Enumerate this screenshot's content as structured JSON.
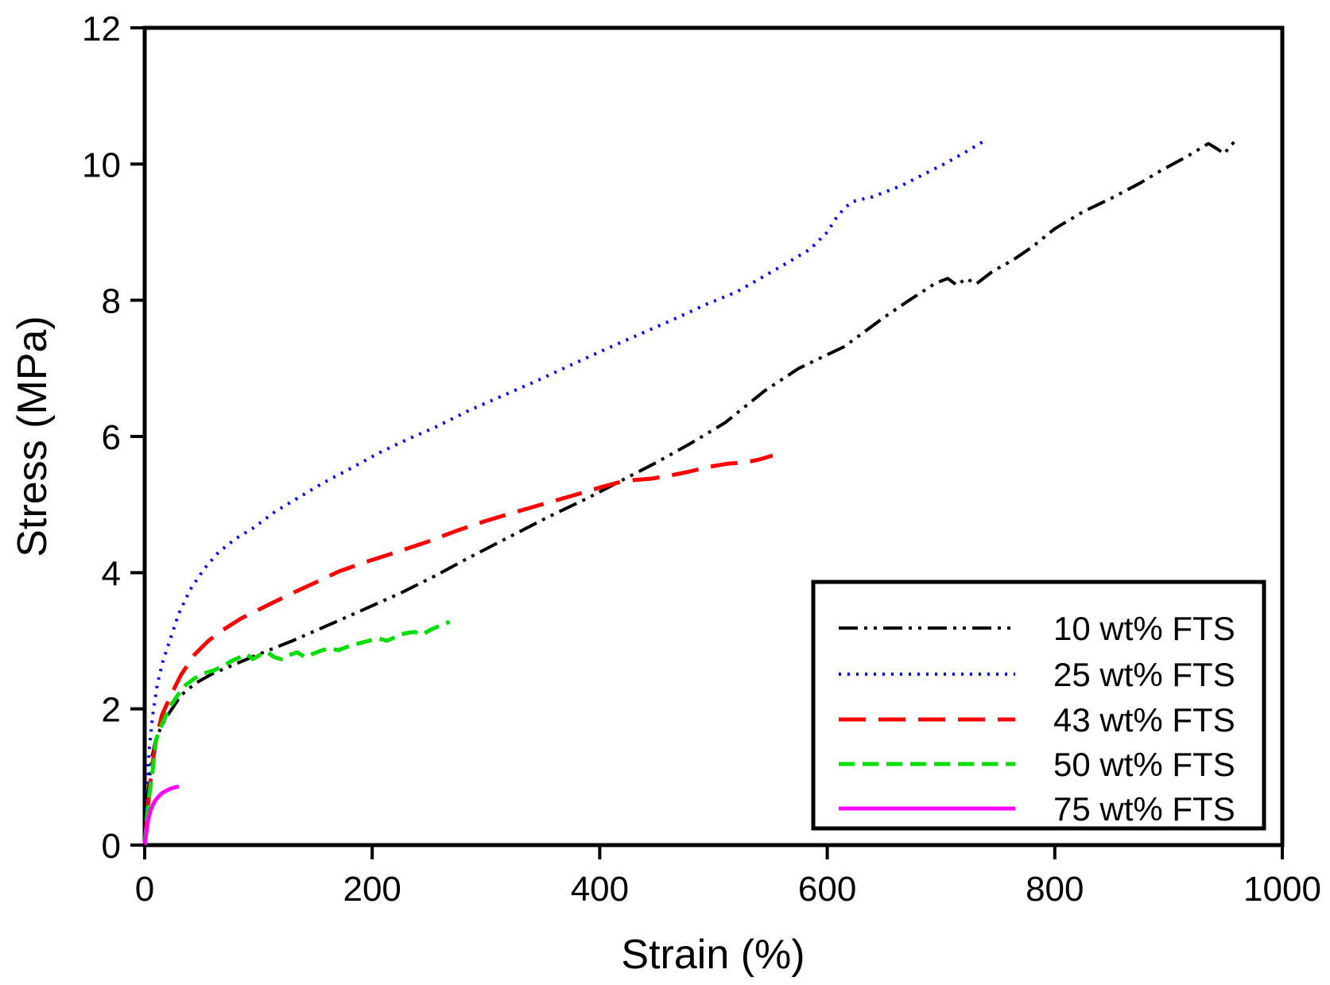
{
  "chart_data": {
    "type": "line",
    "title": "",
    "xlabel": "Strain (%)",
    "ylabel": "Stress (MPa)",
    "xlim": [
      0,
      1000
    ],
    "ylim": [
      0,
      12
    ],
    "xticks": [
      0,
      200,
      400,
      600,
      800,
      1000
    ],
    "yticks": [
      0,
      2,
      4,
      6,
      8,
      10,
      12
    ],
    "grid": false,
    "legend_position": "lower-right",
    "axis_color": "#000000",
    "background_color": "#ffffff",
    "series": [
      {
        "name": "10 wt% FTS",
        "color": "#000000",
        "line_style": "dash-dot-dot",
        "dash": [
          24,
          8,
          4,
          8,
          4,
          8
        ],
        "width": 4,
        "points": [
          [
            0,
            0
          ],
          [
            2,
            0.5
          ],
          [
            4,
            0.95
          ],
          [
            6,
            1.25
          ],
          [
            9,
            1.5
          ],
          [
            14,
            1.72
          ],
          [
            20,
            1.9
          ],
          [
            32,
            2.2
          ],
          [
            45,
            2.38
          ],
          [
            60,
            2.52
          ],
          [
            80,
            2.66
          ],
          [
            100,
            2.8
          ],
          [
            130,
            3.0
          ],
          [
            160,
            3.22
          ],
          [
            190,
            3.44
          ],
          [
            225,
            3.7
          ],
          [
            255,
            3.95
          ],
          [
            285,
            4.22
          ],
          [
            320,
            4.52
          ],
          [
            355,
            4.82
          ],
          [
            390,
            5.1
          ],
          [
            420,
            5.36
          ],
          [
            450,
            5.62
          ],
          [
            480,
            5.9
          ],
          [
            510,
            6.2
          ],
          [
            545,
            6.67
          ],
          [
            575,
            7.0
          ],
          [
            615,
            7.32
          ],
          [
            650,
            7.75
          ],
          [
            672,
            8.0
          ],
          [
            695,
            8.25
          ],
          [
            706,
            8.32
          ],
          [
            714,
            8.22
          ],
          [
            722,
            8.32
          ],
          [
            731,
            8.24
          ],
          [
            745,
            8.42
          ],
          [
            764,
            8.6
          ],
          [
            780,
            8.78
          ],
          [
            800,
            9.05
          ],
          [
            825,
            9.3
          ],
          [
            850,
            9.5
          ],
          [
            875,
            9.72
          ],
          [
            895,
            9.92
          ],
          [
            915,
            10.1
          ],
          [
            935,
            10.3
          ],
          [
            943,
            10.22
          ],
          [
            949,
            10.15
          ],
          [
            955,
            10.28
          ],
          [
            961,
            10.37
          ]
        ]
      },
      {
        "name": "25 wt% FTS",
        "color": "#0000ff",
        "line_style": "dotted",
        "dash": [
          3,
          8
        ],
        "width": 4,
        "points": [
          [
            0,
            0
          ],
          [
            2,
            0.8
          ],
          [
            4,
            1.4
          ],
          [
            7,
            1.9
          ],
          [
            11,
            2.35
          ],
          [
            16,
            2.7
          ],
          [
            22,
            3.0
          ],
          [
            30,
            3.4
          ],
          [
            40,
            3.75
          ],
          [
            52,
            4.05
          ],
          [
            65,
            4.3
          ],
          [
            80,
            4.5
          ],
          [
            95,
            4.65
          ],
          [
            115,
            4.9
          ],
          [
            135,
            5.1
          ],
          [
            157,
            5.32
          ],
          [
            180,
            5.52
          ],
          [
            205,
            5.75
          ],
          [
            230,
            5.95
          ],
          [
            256,
            6.14
          ],
          [
            285,
            6.38
          ],
          [
            315,
            6.6
          ],
          [
            345,
            6.82
          ],
          [
            375,
            7.05
          ],
          [
            405,
            7.28
          ],
          [
            435,
            7.5
          ],
          [
            465,
            7.72
          ],
          [
            495,
            7.95
          ],
          [
            520,
            8.12
          ],
          [
            541,
            8.32
          ],
          [
            565,
            8.55
          ],
          [
            585,
            8.75
          ],
          [
            600,
            9.0
          ],
          [
            608,
            9.21
          ],
          [
            615,
            9.35
          ],
          [
            622,
            9.45
          ],
          [
            640,
            9.52
          ],
          [
            665,
            9.68
          ],
          [
            685,
            9.85
          ],
          [
            705,
            10.02
          ],
          [
            722,
            10.18
          ],
          [
            737,
            10.33
          ]
        ]
      },
      {
        "name": "43 wt% FTS",
        "color": "#ff0000",
        "line_style": "long-dash",
        "dash": [
          34,
          16
        ],
        "width": 5,
        "points": [
          [
            0,
            0
          ],
          [
            3,
            0.6
          ],
          [
            6,
            1.1
          ],
          [
            10,
            1.55
          ],
          [
            15,
            1.9
          ],
          [
            23,
            2.2
          ],
          [
            32,
            2.5
          ],
          [
            44,
            2.8
          ],
          [
            56,
            3.0
          ],
          [
            68,
            3.15
          ],
          [
            85,
            3.33
          ],
          [
            103,
            3.48
          ],
          [
            120,
            3.62
          ],
          [
            135,
            3.74
          ],
          [
            152,
            3.87
          ],
          [
            171,
            4.02
          ],
          [
            195,
            4.16
          ],
          [
            221,
            4.3
          ],
          [
            248,
            4.45
          ],
          [
            275,
            4.62
          ],
          [
            300,
            4.76
          ],
          [
            328,
            4.9
          ],
          [
            355,
            5.03
          ],
          [
            380,
            5.15
          ],
          [
            400,
            5.25
          ],
          [
            415,
            5.32
          ],
          [
            430,
            5.36
          ],
          [
            445,
            5.38
          ],
          [
            460,
            5.42
          ],
          [
            478,
            5.48
          ],
          [
            495,
            5.55
          ],
          [
            512,
            5.6
          ],
          [
            528,
            5.62
          ],
          [
            540,
            5.66
          ],
          [
            552,
            5.72
          ]
        ]
      },
      {
        "name": "50 wt% FTS",
        "color": "#00dd00",
        "line_style": "short-dash",
        "dash": [
          20,
          10
        ],
        "width": 5,
        "points": [
          [
            0,
            0
          ],
          [
            3,
            0.6
          ],
          [
            7,
            1.1
          ],
          [
            10,
            1.55
          ],
          [
            14,
            1.72
          ],
          [
            18,
            1.88
          ],
          [
            23,
            2.05
          ],
          [
            29,
            2.2
          ],
          [
            36,
            2.35
          ],
          [
            44,
            2.45
          ],
          [
            52,
            2.52
          ],
          [
            60,
            2.56
          ],
          [
            68,
            2.62
          ],
          [
            76,
            2.7
          ],
          [
            84,
            2.76
          ],
          [
            90,
            2.8
          ],
          [
            95,
            2.73
          ],
          [
            101,
            2.79
          ],
          [
            108,
            2.83
          ],
          [
            114,
            2.76
          ],
          [
            120,
            2.73
          ],
          [
            127,
            2.79
          ],
          [
            134,
            2.83
          ],
          [
            141,
            2.76
          ],
          [
            148,
            2.81
          ],
          [
            156,
            2.86
          ],
          [
            163,
            2.89
          ],
          [
            170,
            2.86
          ],
          [
            178,
            2.91
          ],
          [
            188,
            2.96
          ],
          [
            197,
            3.0
          ],
          [
            206,
            3.03
          ],
          [
            213,
            3.0
          ],
          [
            221,
            3.06
          ],
          [
            229,
            3.11
          ],
          [
            237,
            3.13
          ],
          [
            244,
            3.09
          ],
          [
            251,
            3.16
          ],
          [
            258,
            3.21
          ],
          [
            263,
            3.24
          ],
          [
            268,
            3.28
          ]
        ]
      },
      {
        "name": "75 wt% FTS",
        "color": "#ff00ff",
        "line_style": "solid",
        "dash": [],
        "width": 5,
        "points": [
          [
            0,
            0
          ],
          [
            1,
            0.12
          ],
          [
            2,
            0.25
          ],
          [
            3,
            0.37
          ],
          [
            5,
            0.5
          ],
          [
            7,
            0.58
          ],
          [
            9,
            0.65
          ],
          [
            12,
            0.71
          ],
          [
            15,
            0.76
          ],
          [
            19,
            0.8
          ],
          [
            23,
            0.83
          ],
          [
            27,
            0.85
          ],
          [
            30,
            0.86
          ]
        ]
      }
    ]
  }
}
